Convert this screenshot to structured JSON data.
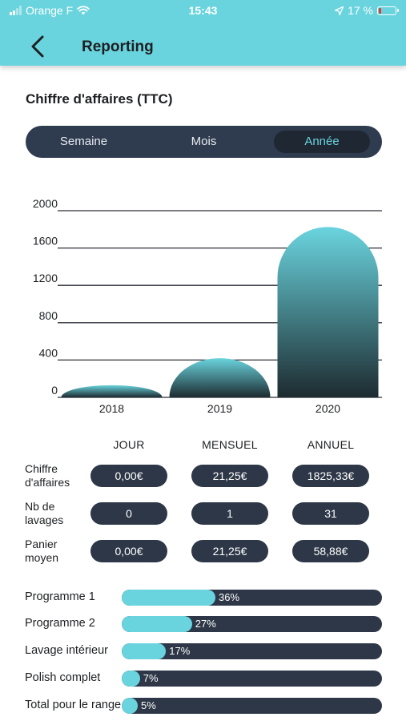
{
  "status_bar": {
    "carrier": "Orange F",
    "time": "15:43",
    "battery": "17 %"
  },
  "header": {
    "title": "Reporting"
  },
  "section": {
    "title": "Chiffre d'affaires (TTC)"
  },
  "period_tabs": {
    "items": [
      "Semaine",
      "Mois",
      "Année"
    ],
    "selected": "Année"
  },
  "colors": {
    "accent": "#6ad4de",
    "dark": "#2d3747",
    "header_bg": "#6ad4de"
  },
  "chart_data": {
    "type": "bar",
    "categories": [
      "2018",
      "2019",
      "2020"
    ],
    "values": [
      130,
      420,
      1825.33
    ],
    "ylim": [
      0,
      2000
    ],
    "yticks": [
      0,
      400,
      800,
      1200,
      1600,
      2000
    ],
    "grid": true,
    "title": "",
    "xlabel": "",
    "ylabel": ""
  },
  "kpi": {
    "columns": [
      "JOUR",
      "MENSUEL",
      "ANNUEL"
    ],
    "rows": [
      {
        "label": "Chiffre d'affaires",
        "values": [
          "0,00€",
          "21,25€",
          "1825,33€"
        ]
      },
      {
        "label": "Nb de lavages",
        "values": [
          "0",
          "1",
          "31"
        ]
      },
      {
        "label": "Panier moyen",
        "values": [
          "0,00€",
          "21,25€",
          "58,88€"
        ]
      }
    ]
  },
  "programs": [
    {
      "label": "Programme 1",
      "pct_text": "36%",
      "pct": 36
    },
    {
      "label": "Programme 2",
      "pct_text": "27%",
      "pct": 27
    },
    {
      "label": "Lavage intérieur",
      "pct_text": "17%",
      "pct": 17
    },
    {
      "label": "Polish complet",
      "pct_text": "7%",
      "pct": 7
    },
    {
      "label": "Total pour le range",
      "pct_text": "5%",
      "pct": 5
    }
  ]
}
